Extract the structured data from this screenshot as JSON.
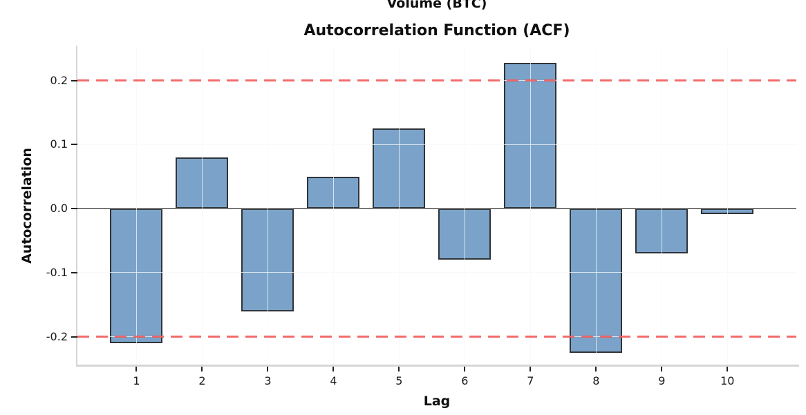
{
  "chart_data": {
    "type": "bar",
    "suptitle": "Volume (BTC)",
    "title": "Autocorrelation Function (ACF)",
    "xlabel": "Lag",
    "ylabel": "Autocorrelation",
    "x": [
      1,
      2,
      3,
      4,
      5,
      6,
      7,
      8,
      9,
      10
    ],
    "xtick_labels": [
      "1",
      "2",
      "3",
      "4",
      "5",
      "6",
      "7",
      "8",
      "9",
      "10"
    ],
    "values": [
      -0.21,
      0.08,
      -0.16,
      0.05,
      0.125,
      -0.08,
      0.228,
      -0.225,
      -0.07,
      -0.008
    ],
    "bar_width": 0.8,
    "zero_line": 0.0,
    "significance_lines": [
      0.2,
      -0.2
    ],
    "yticks": [
      0.2,
      0.1,
      0.0,
      -0.1,
      -0.2
    ],
    "ytick_labels": [
      "0.2",
      "0.1",
      "0.0",
      "-0.1",
      "-0.2"
    ],
    "xlim": [
      0.1,
      11.05
    ],
    "ylim": [
      -0.2435,
      0.2525
    ],
    "grid": true,
    "legend": null,
    "colors": {
      "bar_fill": "#7ba3c9",
      "bar_edge": "#2f3338",
      "significance_line": "rgba(241,87,87,0.88)",
      "zero_line": "#3a3a3a",
      "grid_under": "#eaeaea",
      "grid_over_bars": "rgba(255,255,255,0.7)",
      "spine": "#d6d6d6",
      "tick_mark": "#222222",
      "background": "#ffffff"
    }
  }
}
